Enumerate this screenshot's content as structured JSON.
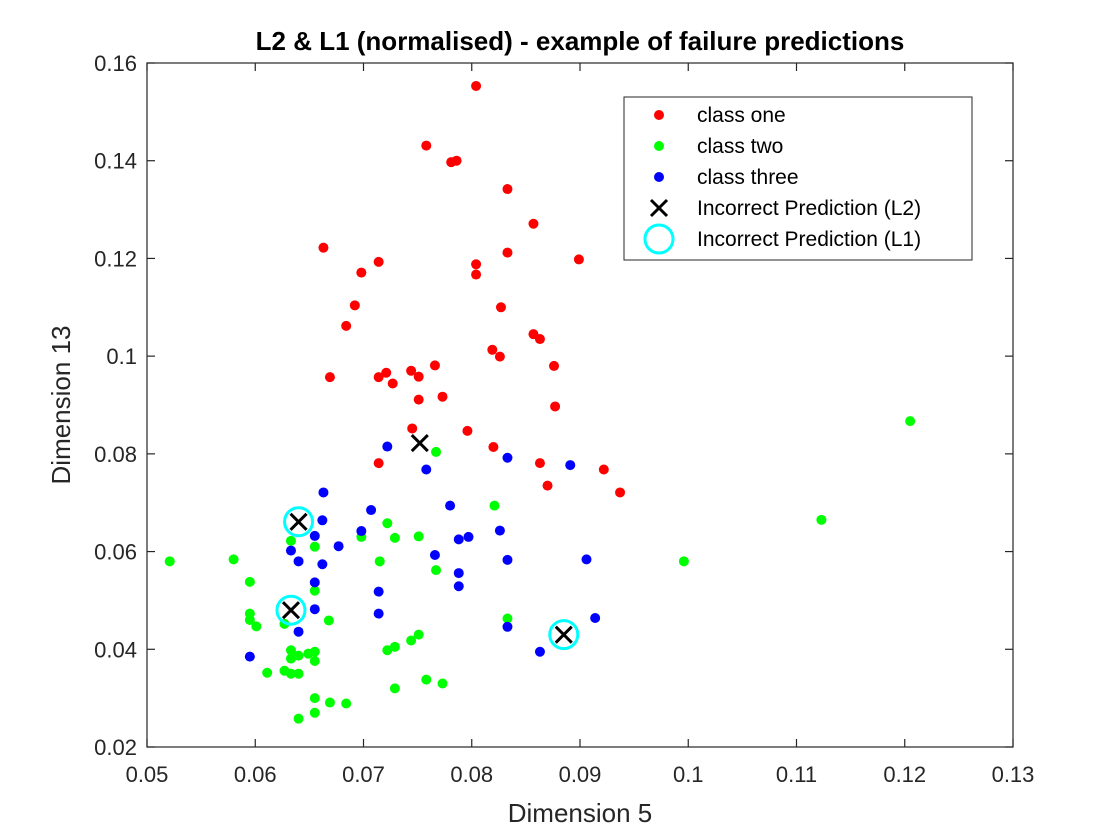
{
  "chart_data": {
    "type": "scatter",
    "title": "L2 & L1 (normalised) - example of failure predictions",
    "xlabel": "Dimension 5",
    "ylabel": "Dimension 13",
    "xlim": [
      0.05,
      0.13
    ],
    "ylim": [
      0.02,
      0.16
    ],
    "xticks": [
      "0.05",
      "0.06",
      "0.07",
      "0.08",
      "0.09",
      "0.1",
      "0.11",
      "0.12",
      "0.13"
    ],
    "yticks": [
      "0.02",
      "0.04",
      "0.06",
      "0.08",
      "0.1",
      "0.12",
      "0.14",
      "0.16"
    ],
    "grid": false,
    "legend_position": "top-right",
    "colors": {
      "class_one": "#ff0000",
      "class_two": "#00ff00",
      "class_three": "#0000ff",
      "l2": "#000000",
      "l1": "#00ffff"
    },
    "series": [
      {
        "name": "class one",
        "marker": "dot",
        "points": [
          [
            0.0804,
            0.1553
          ],
          [
            0.0758,
            0.1431
          ],
          [
            0.0781,
            0.1397
          ],
          [
            0.0786,
            0.14
          ],
          [
            0.0833,
            0.1342
          ],
          [
            0.0857,
            0.1271
          ],
          [
            0.0663,
            0.1222
          ],
          [
            0.0833,
            0.1212
          ],
          [
            0.0899,
            0.1198
          ],
          [
            0.0714,
            0.1193
          ],
          [
            0.0804,
            0.1188
          ],
          [
            0.0698,
            0.1171
          ],
          [
            0.0804,
            0.1167
          ],
          [
            0.0692,
            0.1104
          ],
          [
            0.0827,
            0.11
          ],
          [
            0.0684,
            0.1062
          ],
          [
            0.0857,
            0.1045
          ],
          [
            0.0863,
            0.1035
          ],
          [
            0.0819,
            0.1013
          ],
          [
            0.0826,
            0.0999
          ],
          [
            0.0766,
            0.0981
          ],
          [
            0.0876,
            0.098
          ],
          [
            0.0744,
            0.097
          ],
          [
            0.0721,
            0.0966
          ],
          [
            0.0714,
            0.0957
          ],
          [
            0.0751,
            0.0958
          ],
          [
            0.0669,
            0.0957
          ],
          [
            0.0727,
            0.0944
          ],
          [
            0.0773,
            0.0917
          ],
          [
            0.0751,
            0.0911
          ],
          [
            0.0877,
            0.0897
          ],
          [
            0.0745,
            0.0852
          ],
          [
            0.0796,
            0.0847
          ],
          [
            0.082,
            0.0814
          ],
          [
            0.0714,
            0.0781
          ],
          [
            0.0863,
            0.0781
          ],
          [
            0.0922,
            0.0768
          ],
          [
            0.087,
            0.0735
          ],
          [
            0.0937,
            0.0721
          ]
        ]
      },
      {
        "name": "class two",
        "marker": "dot",
        "points": [
          [
            0.1205,
            0.0867
          ],
          [
            0.0767,
            0.0804
          ],
          [
            0.0821,
            0.0694
          ],
          [
            0.1123,
            0.0665
          ],
          [
            0.0722,
            0.0658
          ],
          [
            0.0633,
            0.0622
          ],
          [
            0.0698,
            0.063
          ],
          [
            0.0729,
            0.0628
          ],
          [
            0.0751,
            0.0631
          ],
          [
            0.0655,
            0.061
          ],
          [
            0.0521,
            0.058
          ],
          [
            0.058,
            0.0584
          ],
          [
            0.0715,
            0.058
          ],
          [
            0.0996,
            0.058
          ],
          [
            0.0767,
            0.0562
          ],
          [
            0.0595,
            0.0538
          ],
          [
            0.0655,
            0.052
          ],
          [
            0.0595,
            0.0473
          ],
          [
            0.0595,
            0.046
          ],
          [
            0.0601,
            0.0447
          ],
          [
            0.0627,
            0.0452
          ],
          [
            0.0668,
            0.0459
          ],
          [
            0.0833,
            0.0463
          ],
          [
            0.0751,
            0.043
          ],
          [
            0.0744,
            0.0418
          ],
          [
            0.0729,
            0.0405
          ],
          [
            0.0722,
            0.0398
          ],
          [
            0.0633,
            0.0398
          ],
          [
            0.0649,
            0.0391
          ],
          [
            0.0655,
            0.0395
          ],
          [
            0.064,
            0.0387
          ],
          [
            0.0633,
            0.0381
          ],
          [
            0.0655,
            0.0376
          ],
          [
            0.0627,
            0.0356
          ],
          [
            0.0611,
            0.0352
          ],
          [
            0.0633,
            0.035
          ],
          [
            0.064,
            0.035
          ],
          [
            0.0758,
            0.0338
          ],
          [
            0.0773,
            0.033
          ],
          [
            0.0729,
            0.032
          ],
          [
            0.0655,
            0.03
          ],
          [
            0.0669,
            0.0291
          ],
          [
            0.0684,
            0.0289
          ],
          [
            0.0655,
            0.027
          ],
          [
            0.064,
            0.0258
          ]
        ]
      },
      {
        "name": "class three",
        "marker": "dot",
        "points": [
          [
            0.0722,
            0.0815
          ],
          [
            0.0833,
            0.0792
          ],
          [
            0.0891,
            0.0777
          ],
          [
            0.0758,
            0.0768
          ],
          [
            0.0663,
            0.0721
          ],
          [
            0.078,
            0.0694
          ],
          [
            0.0707,
            0.0685
          ],
          [
            0.0662,
            0.0664
          ],
          [
            0.0826,
            0.0643
          ],
          [
            0.0698,
            0.0642
          ],
          [
            0.0797,
            0.063
          ],
          [
            0.0788,
            0.0625
          ],
          [
            0.0655,
            0.0632
          ],
          [
            0.0677,
            0.0611
          ],
          [
            0.0633,
            0.0602
          ],
          [
            0.0766,
            0.0593
          ],
          [
            0.0906,
            0.0584
          ],
          [
            0.0833,
            0.0583
          ],
          [
            0.064,
            0.058
          ],
          [
            0.0662,
            0.0574
          ],
          [
            0.0788,
            0.0556
          ],
          [
            0.0655,
            0.0537
          ],
          [
            0.0788,
            0.0529
          ],
          [
            0.0714,
            0.0518
          ],
          [
            0.0655,
            0.0482
          ],
          [
            0.0714,
            0.0473
          ],
          [
            0.0914,
            0.0464
          ],
          [
            0.0833,
            0.0446
          ],
          [
            0.064,
            0.0436
          ],
          [
            0.0863,
            0.0395
          ],
          [
            0.0595,
            0.0385
          ]
        ]
      },
      {
        "name": "Incorrect Prediction (L2)",
        "marker": "x",
        "points": [
          [
            0.0752,
            0.0822
          ],
          [
            0.064,
            0.0661
          ],
          [
            0.0633,
            0.048
          ],
          [
            0.0885,
            0.043
          ]
        ]
      },
      {
        "name": "Incorrect Prediction (L1)",
        "marker": "circle",
        "points": [
          [
            0.064,
            0.0661
          ],
          [
            0.0633,
            0.048
          ],
          [
            0.0885,
            0.043
          ]
        ]
      }
    ]
  }
}
